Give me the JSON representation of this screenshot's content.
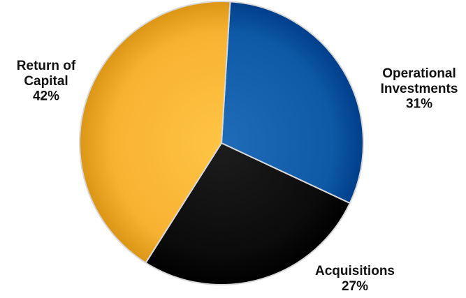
{
  "chart_data": {
    "type": "pie",
    "slices": [
      {
        "label_lines": [
          "Operational",
          "Investments"
        ],
        "value_label": "31%",
        "value": 31,
        "color": "#0E5AA6"
      },
      {
        "label_lines": [
          "Acquisitions"
        ],
        "value_label": "27%",
        "value": 27,
        "color": "#0B0B0B"
      },
      {
        "label_lines": [
          "Return of",
          "Capital"
        ],
        "value_label": "42%",
        "value": 42,
        "color": "#F8B232"
      }
    ],
    "legend": "none",
    "grid": false
  }
}
